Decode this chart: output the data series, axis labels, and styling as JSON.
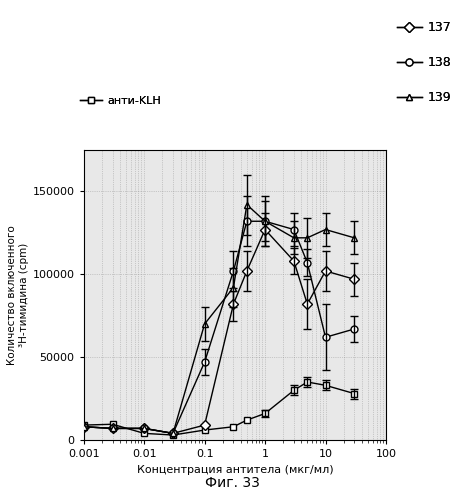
{
  "title": "",
  "xlabel": "Концентрация антитела (мкг/мл)",
  "ylabel": "Количество включенного\n³H-тимидина (cpm)",
  "fig_label": "Фиг. 33",
  "xlim": [
    0.001,
    100
  ],
  "ylim": [
    0,
    175000
  ],
  "yticks": [
    0,
    50000,
    100000,
    150000
  ],
  "ytick_labels": [
    "0",
    "50000",
    "100000",
    "150000"
  ],
  "series_137": {
    "x": [
      0.001,
      0.003,
      0.01,
      0.03,
      0.1,
      0.3,
      0.5,
      1.0,
      3.0,
      5.0,
      10.0,
      30.0
    ],
    "y": [
      8000,
      7000,
      7000,
      4000,
      9000,
      82000,
      102000,
      127000,
      108000,
      82000,
      102000,
      97000
    ],
    "yerr": [
      0,
      0,
      0,
      0,
      0,
      10000,
      12000,
      10000,
      8000,
      15000,
      12000,
      10000
    ],
    "label": "137",
    "marker": "D",
    "color": "black"
  },
  "series_138": {
    "x": [
      0.001,
      0.003,
      0.01,
      0.03,
      0.1,
      0.3,
      0.5,
      1.0,
      3.0,
      5.0,
      10.0,
      30.0
    ],
    "y": [
      8000,
      7000,
      7000,
      4000,
      47000,
      102000,
      132000,
      132000,
      127000,
      107000,
      62000,
      67000
    ],
    "yerr": [
      0,
      0,
      0,
      0,
      8000,
      12000,
      15000,
      12000,
      10000,
      8000,
      20000,
      8000
    ],
    "label": "138",
    "marker": "o",
    "color": "black"
  },
  "series_139": {
    "x": [
      0.001,
      0.003,
      0.01,
      0.03,
      0.1,
      0.3,
      0.5,
      1.0,
      3.0,
      5.0,
      10.0,
      30.0
    ],
    "y": [
      8000,
      7000,
      7000,
      4000,
      70000,
      92000,
      142000,
      132000,
      122000,
      122000,
      127000,
      122000
    ],
    "yerr": [
      0,
      0,
      0,
      0,
      10000,
      12000,
      18000,
      15000,
      10000,
      12000,
      10000,
      10000
    ],
    "label": "139",
    "marker": "^",
    "color": "black"
  },
  "series_klh": {
    "x": [
      0.001,
      0.003,
      0.01,
      0.03,
      0.1,
      0.3,
      0.5,
      1.0,
      3.0,
      5.0,
      10.0,
      30.0
    ],
    "y": [
      9000,
      9500,
      4000,
      3000,
      6000,
      8000,
      12000,
      16000,
      30000,
      35000,
      33000,
      28000
    ],
    "yerr": [
      0,
      0,
      0,
      0,
      0,
      0,
      0,
      2000,
      3000,
      3000,
      3000,
      3000
    ],
    "label": "анти-KLH",
    "marker": "s",
    "color": "black"
  },
  "background_color": "#e8e8e8",
  "grid_color": "#888888"
}
